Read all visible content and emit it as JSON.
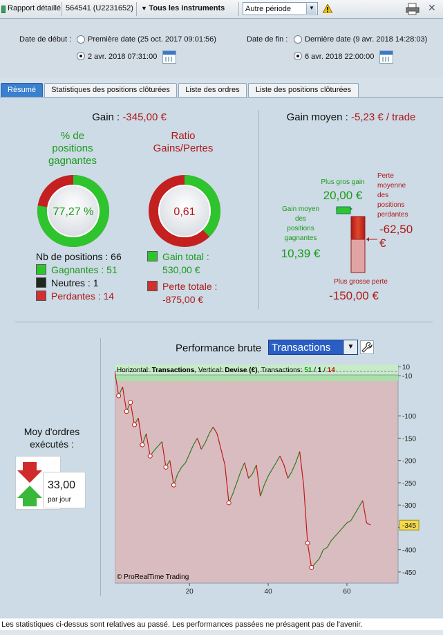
{
  "toolbar": {
    "report": "Rapport détaillé",
    "account": "564541 (U2231652)",
    "instruments": "Tous les instruments",
    "period": "Autre période"
  },
  "dates": {
    "start_label": "Date de début :",
    "end_label": "Date de fin :",
    "start_first": "Première date (25 oct. 2017 09:01:56)",
    "start_custom": "2 avr. 2018 07:31:00",
    "end_last": "Dernière date (9 avr. 2018 14:28:03)",
    "end_custom": "6 avr. 2018 22:00:00"
  },
  "tabs": [
    "Résumé",
    "Statistiques des positions clôturées",
    "Liste des ordres",
    "Liste des positions clôturées"
  ],
  "summary": {
    "gain_label": "Gain :",
    "gain_value": "-345,00 €",
    "win_title": "% de\npositions\ngagnantes",
    "win_pct": "77,27 %",
    "win_fraction": 0.7727,
    "ratio_title": "Ratio\nGains/Pertes",
    "ratio_value": "0,61",
    "ratio_fraction": 0.377,
    "nb_positions": "Nb de positions : 66",
    "winners": "Gagnantes : 51",
    "neutral": "Neutres : 1",
    "losers": "Perdantes : 14",
    "gain_total_label": "Gain total :",
    "gain_total": "530,00 €",
    "loss_total_label": "Perte totale :",
    "loss_total": "-875,00 €"
  },
  "average": {
    "title": "Gain moyen :",
    "value": "-5,23 € / trade",
    "biggest_gain_label": "Plus gros gain",
    "biggest_gain": "20,00 €",
    "avg_gain_label": "Gain moyen\ndes\npositions\ngagnantes",
    "avg_gain": "10,39 €",
    "avg_loss_label": "Perte\nmoyenne\ndes\npositions\nperdantes",
    "avg_loss": "-62,50\n€",
    "biggest_loss_label": "Plus grosse perte",
    "biggest_loss": "-150,00 €"
  },
  "orders": {
    "title": "Moy d'ordres\nexécutés :",
    "value": "33,00",
    "unit": "par jour"
  },
  "performance": {
    "title": "Performance brute",
    "mode": "Transactions"
  },
  "chart_data": {
    "type": "line",
    "header": {
      "h_label": "Horizontal:",
      "h_value": "Transactions",
      "v_label": "Vertical:",
      "v_value": "Devise (€)",
      "t_label": "Transactions:",
      "wins": "51",
      "neutral": "1",
      "losses": "14"
    },
    "x": [
      1,
      2,
      3,
      4,
      5,
      6,
      7,
      8,
      9,
      10,
      11,
      12,
      13,
      14,
      15,
      16,
      17,
      18,
      19,
      20,
      21,
      22,
      23,
      24,
      25,
      26,
      27,
      28,
      29,
      30,
      31,
      32,
      33,
      34,
      35,
      36,
      37,
      38,
      39,
      40,
      41,
      42,
      43,
      44,
      45,
      46,
      47,
      48,
      49,
      50,
      51,
      52,
      53,
      54,
      55,
      56,
      57,
      58,
      59,
      60,
      61,
      62,
      63,
      64,
      65,
      66
    ],
    "y": [
      0,
      -55,
      -35,
      -90,
      -70,
      -120,
      -105,
      -165,
      -140,
      -190,
      -178,
      -168,
      -158,
      -215,
      -200,
      -255,
      -230,
      -215,
      -205,
      -185,
      -165,
      -150,
      -175,
      -160,
      -140,
      -125,
      -140,
      -175,
      -210,
      -295,
      -275,
      -250,
      -225,
      -205,
      -240,
      -230,
      -210,
      -280,
      -255,
      -235,
      -220,
      -205,
      -190,
      -210,
      -240,
      -225,
      -205,
      -180,
      -255,
      -385,
      -440,
      -430,
      -420,
      -400,
      -395,
      -380,
      -370,
      -360,
      -350,
      -340,
      -335,
      -320,
      -305,
      -290,
      -340,
      -345
    ],
    "loss_points_x": [
      2,
      4,
      5,
      6,
      8,
      10,
      14,
      16,
      30,
      50,
      51
    ],
    "xticks": [
      20,
      40,
      60
    ],
    "yticks": [
      10,
      -10,
      -100,
      -150,
      -200,
      -250,
      -300,
      -350,
      -400,
      -450
    ],
    "ylim": [
      -475,
      15
    ],
    "xlim": [
      1,
      73
    ],
    "last_value": "-345",
    "copyright": "© ProRealTime Trading"
  },
  "footer": "Les statistiques ci-dessus sont relatives au passé. Les performances passées ne présagent pas de l'avenir.",
  "colors": {
    "green": "#1a9a1a",
    "red": "#b01818",
    "accent": "#3a7fd0"
  }
}
